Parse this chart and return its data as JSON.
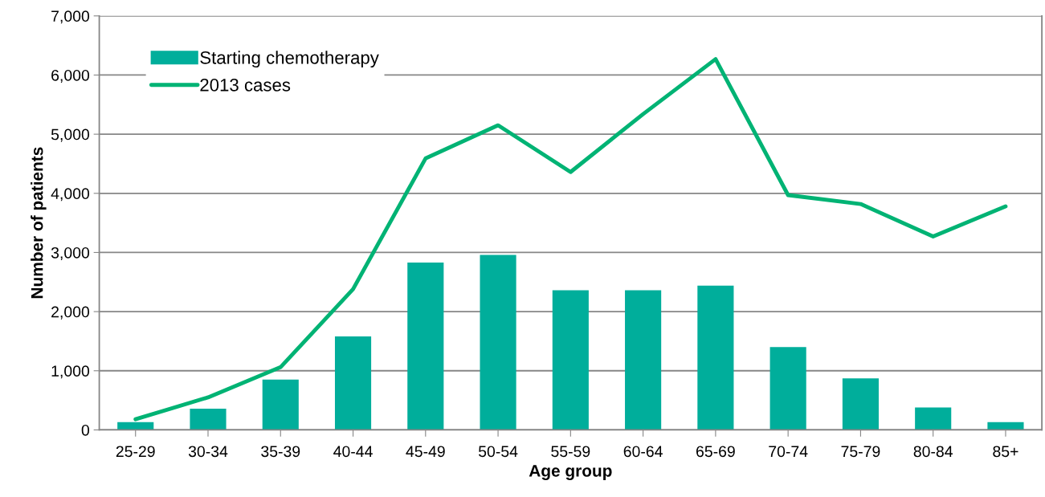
{
  "chart_data": {
    "type": "bar",
    "xlabel": "Age group",
    "ylabel": "Number of patients",
    "categories": [
      "25-29",
      "30-34",
      "35-39",
      "40-44",
      "45-49",
      "50-54",
      "55-59",
      "60-64",
      "65-69",
      "70-74",
      "75-79",
      "80-84",
      "85+"
    ],
    "series": [
      {
        "name": "Starting chemotherapy",
        "color": "#00ae9b",
        "values": [
          130,
          360,
          850,
          1580,
          2830,
          2960,
          2360,
          2360,
          2440,
          1400,
          870,
          380,
          130
        ]
      },
      {
        "name": "2013 cases",
        "type": "line",
        "color": "#00b374",
        "values": [
          180,
          550,
          1060,
          2380,
          4590,
          5150,
          4360,
          5340,
          6270,
          3970,
          3820,
          3270,
          3780
        ]
      }
    ],
    "ylim": [
      0,
      7000
    ],
    "yticks": [
      {
        "value": 0,
        "label": "0"
      },
      {
        "value": 1000,
        "label": "1,000"
      },
      {
        "value": 2000,
        "label": "2,000"
      },
      {
        "value": 3000,
        "label": "3,000"
      },
      {
        "value": 4000,
        "label": "4,000"
      },
      {
        "value": 5000,
        "label": "5,000"
      },
      {
        "value": 6000,
        "label": "6,000"
      },
      {
        "value": 7000,
        "label": "7,000"
      }
    ],
    "grid": "y",
    "legend": "top left",
    "line_style": "solid",
    "marker": "none"
  }
}
